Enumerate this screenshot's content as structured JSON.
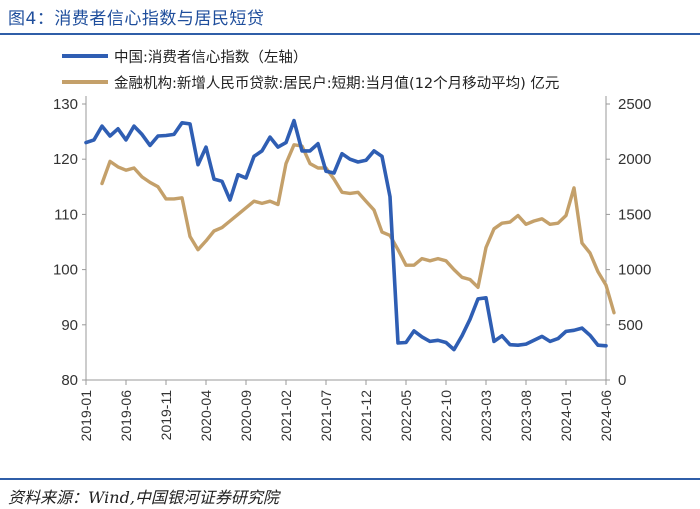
{
  "figure": {
    "title": "图4：消费者信心指数与居民短贷",
    "source": "资料来源：Wind,中国银河证券研究院"
  },
  "colors": {
    "series1": "#2f5eb3",
    "series2": "#c4a06a",
    "axis": "#999999",
    "rule": "#2f5ea8"
  },
  "chart_data": {
    "type": "line",
    "x_ticks": [
      "2019-01",
      "2019-06",
      "2019-11",
      "2020-04",
      "2020-09",
      "2021-02",
      "2021-07",
      "2021-12",
      "2022-05",
      "2022-10",
      "2023-03",
      "2023-08",
      "2024-01",
      "2024-06"
    ],
    "y_left": {
      "min": 80,
      "max": 130,
      "ticks": [
        "80",
        "90",
        "100",
        "110",
        "120",
        "130"
      ]
    },
    "y_right": {
      "min": 0,
      "max": 2500,
      "ticks": [
        "0",
        "500",
        "1000",
        "1500",
        "2000",
        "2500"
      ]
    },
    "grid": false,
    "legend_position": "top-left",
    "series": [
      {
        "name": "中国:消费者信心指数（左轴）",
        "axis": "left",
        "start": "2019-01",
        "values": [
          123.0,
          123.5,
          126.0,
          124.2,
          125.5,
          123.5,
          126.0,
          124.5,
          122.5,
          124.2,
          124.3,
          124.5,
          126.6,
          126.4,
          119.0,
          122.2,
          116.4,
          116.0,
          112.6,
          117.2,
          116.6,
          120.5,
          121.5,
          124.0,
          122.2,
          123.0,
          127.0,
          121.5,
          121.5,
          122.8,
          117.8,
          117.5,
          121.0,
          120.0,
          119.5,
          119.8,
          121.5,
          120.5,
          113.2,
          86.7,
          86.8,
          88.9,
          87.8,
          87.0,
          87.2,
          86.8,
          85.5,
          88.0,
          91.0,
          94.7,
          94.9,
          87.0,
          88.0,
          86.4,
          86.3,
          86.5,
          87.2,
          87.9,
          87.0,
          87.5,
          88.8,
          89.0,
          89.4,
          88.1,
          86.3,
          86.2
        ]
      },
      {
        "name": "金融机构:新增人民币贷款:居民户:短期:当月值(12个月移动平均)  亿元",
        "axis": "right",
        "start": "2019-03",
        "values": [
          1780,
          1980,
          1930,
          1900,
          1920,
          1840,
          1790,
          1750,
          1640,
          1640,
          1650,
          1300,
          1180,
          1260,
          1350,
          1380,
          1440,
          1500,
          1560,
          1620,
          1600,
          1620,
          1590,
          1960,
          2130,
          2120,
          1960,
          1920,
          1920,
          1820,
          1700,
          1690,
          1700,
          1620,
          1540,
          1340,
          1310,
          1180,
          1040,
          1040,
          1100,
          1080,
          1100,
          1080,
          1000,
          930,
          910,
          840,
          1200,
          1370,
          1420,
          1430,
          1490,
          1410,
          1440,
          1460,
          1410,
          1420,
          1490,
          1740,
          1240,
          1150,
          980,
          860,
          610
        ]
      }
    ]
  }
}
